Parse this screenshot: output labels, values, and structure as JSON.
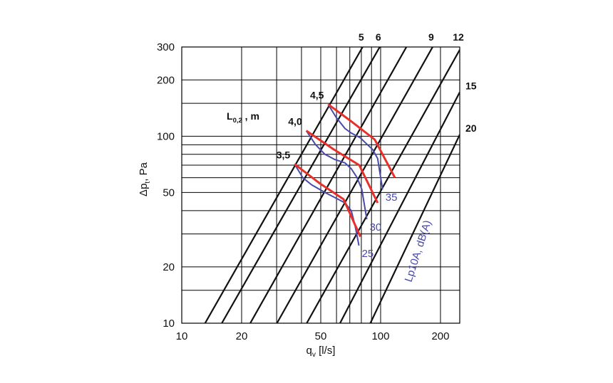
{
  "chart_data": {
    "type": "line",
    "x_scale": "log",
    "y_scale": "log",
    "xlim": [
      10,
      250
    ],
    "ylim": [
      10,
      300
    ],
    "grid": true,
    "xlabel": {
      "main": "q",
      "sub": "v",
      "unit": " [l/s]"
    },
    "ylabel": {
      "main": "Δp",
      "sub": "t",
      "unit": ", Pa"
    },
    "x_ticks": [
      {
        "value": 10,
        "label": "10"
      },
      {
        "value": 20,
        "label": "20"
      },
      {
        "value": 50,
        "label": "50"
      },
      {
        "value": 100,
        "label": "100"
      },
      {
        "value": 200,
        "label": "200"
      }
    ],
    "y_ticks": [
      {
        "value": 10,
        "label": "10"
      },
      {
        "value": 20,
        "label": "20"
      },
      {
        "value": 50,
        "label": "50"
      },
      {
        "value": 100,
        "label": "100"
      },
      {
        "value": 200,
        "label": "200"
      },
      {
        "value": 300,
        "label": "300"
      }
    ],
    "x_grid": [
      10,
      20,
      30,
      40,
      50,
      60,
      70,
      80,
      90,
      100,
      200
    ],
    "y_grid": [
      10,
      15,
      20,
      30,
      40,
      50,
      60,
      70,
      80,
      90,
      100,
      150,
      200,
      300
    ],
    "family_lines": [
      {
        "label": "5",
        "bold": true,
        "points": [
          [
            13.1,
            10
          ],
          [
            81.2,
            300
          ]
        ]
      },
      {
        "label": "6",
        "bold": false,
        "points": [
          [
            15.9,
            10
          ],
          [
            99.0,
            300
          ]
        ]
      },
      {
        "label": "",
        "bold": false,
        "points": [
          [
            22.1,
            10
          ],
          [
            134.8,
            300
          ]
        ]
      },
      {
        "label": "9",
        "bold": false,
        "points": [
          [
            30.1,
            10
          ],
          [
            182.6,
            300
          ]
        ]
      },
      {
        "label": "12",
        "bold": false,
        "points": [
          [
            42.5,
            10
          ],
          [
            250,
            290
          ]
        ]
      },
      {
        "label": "15",
        "bold": false,
        "points": [
          [
            62.5,
            10
          ],
          [
            250,
            172
          ]
        ]
      },
      {
        "label": "20",
        "bold": false,
        "points": [
          [
            88.8,
            10
          ],
          [
            250,
            102
          ]
        ]
      }
    ],
    "family_title": {
      "main": "L",
      "sub": "0,2",
      "unit": " , m"
    },
    "throw_curves": [
      {
        "label": "3,5",
        "color": "#e8302a",
        "points": [
          [
            36.9,
            71
          ],
          [
            49.4,
            56
          ],
          [
            65.1,
            46
          ],
          [
            79.1,
            29
          ]
        ]
      },
      {
        "label": "4,0",
        "color": "#e8302a",
        "points": [
          [
            42.3,
            107
          ],
          [
            58.1,
            85
          ],
          [
            78.1,
            70
          ],
          [
            96.6,
            44
          ]
        ]
      },
      {
        "label": "4,5",
        "color": "#e8302a",
        "points": [
          [
            54.5,
            148
          ],
          [
            71.2,
            120
          ],
          [
            93.4,
            96
          ],
          [
            118.0,
            60
          ]
        ]
      }
    ],
    "sound_curves": [
      {
        "label": "25",
        "color": "#4a4aa8",
        "points": [
          [
            36.9,
            71
          ],
          [
            40.6,
            60
          ],
          [
            44.9,
            55
          ],
          [
            52.5,
            50
          ],
          [
            58.9,
            47
          ],
          [
            66.2,
            44
          ],
          [
            71.2,
            40
          ],
          [
            74.5,
            33
          ],
          [
            77.8,
            26
          ]
        ]
      },
      {
        "label": "30",
        "color": "#4a4aa8",
        "points": [
          [
            42.3,
            107
          ],
          [
            47.1,
            90
          ],
          [
            52.5,
            80
          ],
          [
            58.9,
            75
          ],
          [
            66.2,
            72
          ],
          [
            71.2,
            67
          ],
          [
            76.2,
            60
          ],
          [
            80.4,
            52
          ],
          [
            85.2,
            36
          ]
        ]
      },
      {
        "label": "35",
        "color": "#4a4aa8",
        "points": [
          [
            54.5,
            148
          ],
          [
            59.8,
            126
          ],
          [
            66.2,
            110
          ],
          [
            71.2,
            104
          ],
          [
            79.1,
            98
          ],
          [
            84.0,
            92
          ],
          [
            91.1,
            85
          ],
          [
            96.6,
            76
          ],
          [
            102.3,
            52
          ]
        ]
      }
    ],
    "sound_title": "Lp10A, dB(A)"
  }
}
